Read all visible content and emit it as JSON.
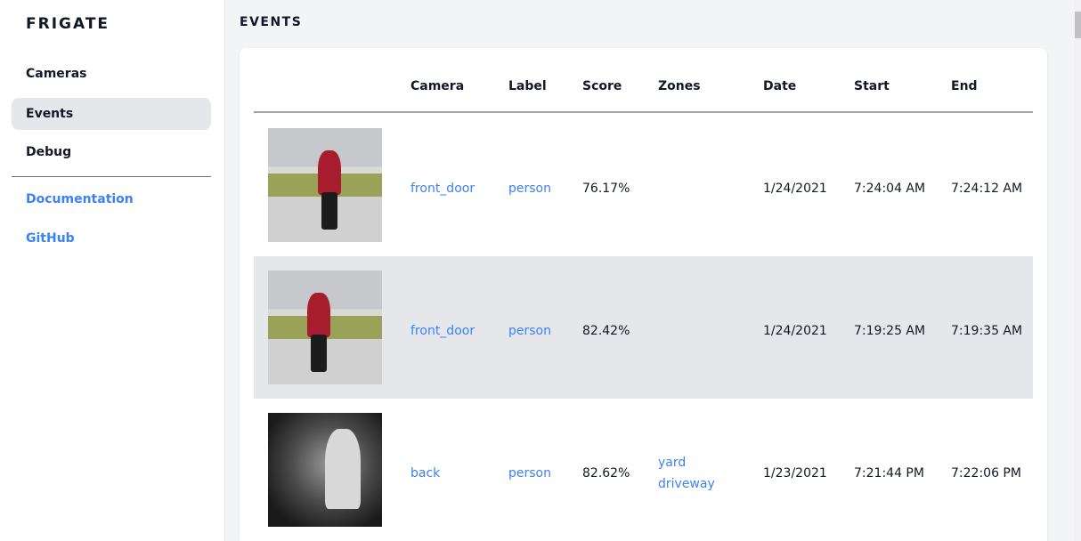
{
  "sidebar": {
    "brand": "FRIGATE",
    "items": [
      {
        "label": "Cameras",
        "active": false
      },
      {
        "label": "Events",
        "active": true
      },
      {
        "label": "Debug",
        "active": false
      }
    ],
    "links": [
      {
        "label": "Documentation"
      },
      {
        "label": "GitHub"
      }
    ]
  },
  "main": {
    "title": "EVENTS",
    "columns": [
      "Camera",
      "Label",
      "Score",
      "Zones",
      "Date",
      "Start",
      "End"
    ],
    "rows": [
      {
        "camera": "front_door",
        "label": "person",
        "score": "76.17%",
        "zones": [
          "",
          ""
        ],
        "date": "1/24/2021",
        "start": "7:24:04 AM",
        "end": "7:24:12 AM"
      },
      {
        "camera": "front_door",
        "label": "person",
        "score": "82.42%",
        "zones": [
          "",
          ""
        ],
        "date": "1/24/2021",
        "start": "7:19:25 AM",
        "end": "7:19:35 AM"
      },
      {
        "camera": "back",
        "label": "person",
        "score": "82.62%",
        "zones": [
          "yard",
          "driveway"
        ],
        "date": "1/23/2021",
        "start": "7:21:44 PM",
        "end": "7:22:06 PM"
      }
    ]
  },
  "colors": {
    "accent": "#3b82f6",
    "active_bg": "#e5e7eb",
    "page_bg": "#f3f4f6"
  }
}
